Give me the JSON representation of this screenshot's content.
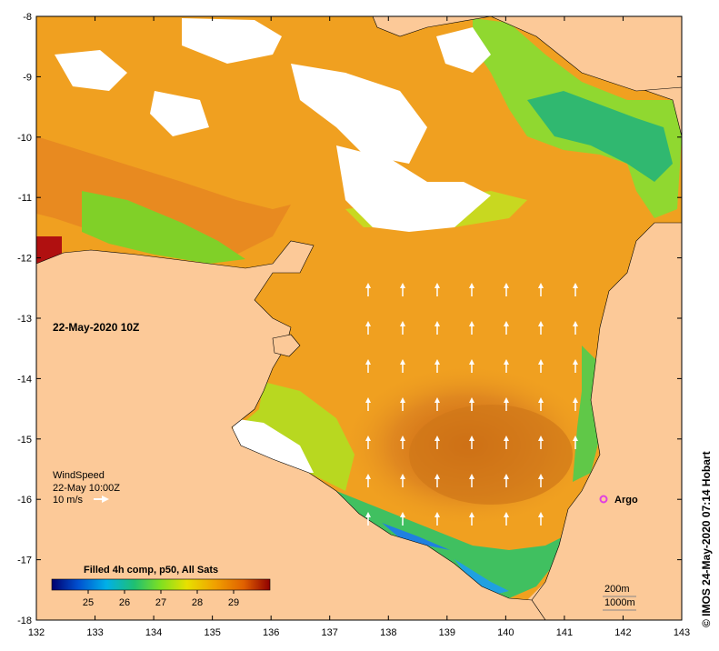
{
  "map": {
    "timestamp": "22-May-2020 10Z",
    "credit": "© IMOS 24-May-2020 07:14 Hobart",
    "x_ticks": [
      "132",
      "133",
      "134",
      "135",
      "136",
      "137",
      "138",
      "139",
      "140",
      "141",
      "142",
      "143"
    ],
    "y_ticks": [
      "-8",
      "-9",
      "-10",
      "-11",
      "-12",
      "-13",
      "-14",
      "-15",
      "-16",
      "-17",
      "-18"
    ],
    "wind_legend": {
      "title": "WindSpeed",
      "time": "22-May 10:00Z",
      "scale": "10 m/s"
    },
    "argo_label": "Argo",
    "isobaths": [
      "200m",
      "1000m"
    ],
    "colorbar": {
      "title": "Filled 4h comp, p50, All Sats",
      "ticks": [
        "25",
        "26",
        "27",
        "28",
        "29"
      ],
      "range": [
        24,
        30
      ]
    },
    "colors": {
      "land": "#fcc998",
      "warm": "#f0a020",
      "cloud": "#ffffff",
      "argo": "#e040e0"
    }
  }
}
